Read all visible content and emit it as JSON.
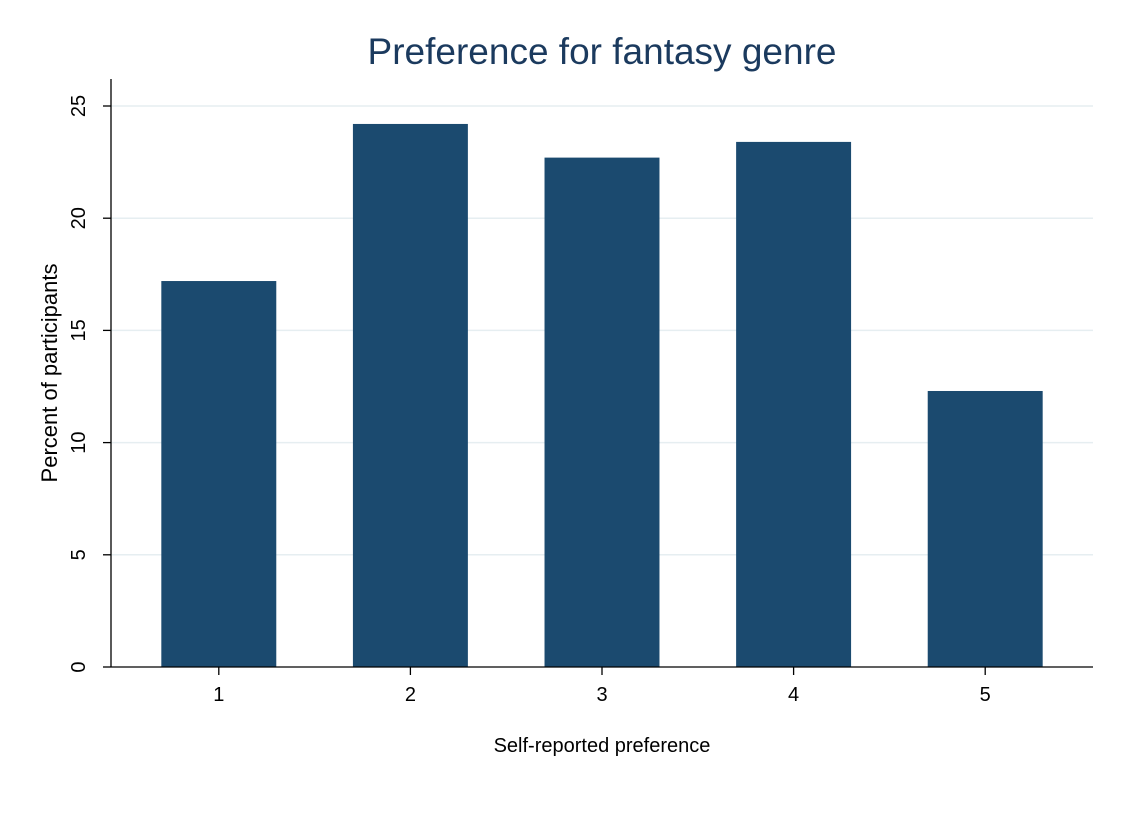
{
  "chart_data": {
    "type": "bar",
    "title": "Preference for fantasy genre",
    "xlabel": "Self-reported preference",
    "ylabel": "Percent of participants",
    "categories": [
      "1",
      "2",
      "3",
      "4",
      "5"
    ],
    "values": [
      17.2,
      24.2,
      22.7,
      23.4,
      12.3
    ],
    "ylim": [
      0,
      25
    ],
    "yticks": [
      "0",
      "5",
      "10",
      "15",
      "20",
      "25"
    ],
    "grid": true,
    "legend": "none",
    "colors": {
      "bar": "#1b4a6f",
      "title": "#1b3a5e",
      "gridline": "#e6eef1"
    }
  }
}
